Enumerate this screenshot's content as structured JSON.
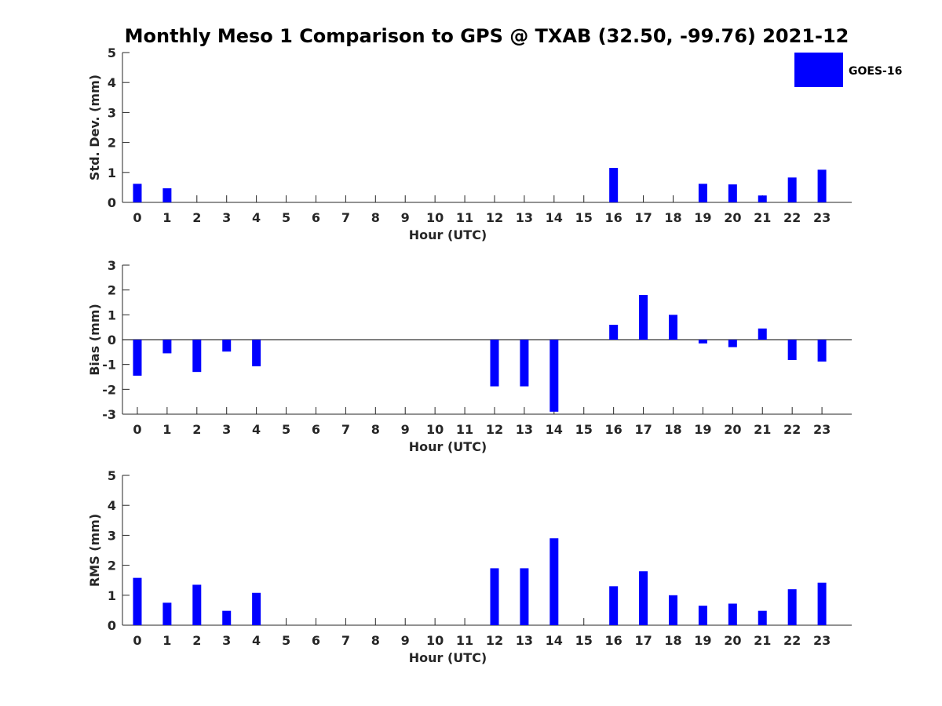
{
  "chart_data": {
    "type": "bar",
    "title": "Monthly Meso 1 Comparison to GPS @ TXAB (32.50, -99.76) 2021-12",
    "bar_color": "#0000ff",
    "legend": {
      "label": "GOES-16",
      "placement": "top-right"
    },
    "categories": [
      "0",
      "1",
      "2",
      "3",
      "4",
      "5",
      "6",
      "7",
      "8",
      "9",
      "10",
      "11",
      "12",
      "13",
      "14",
      "15",
      "16",
      "17",
      "18",
      "19",
      "20",
      "21",
      "22",
      "23"
    ],
    "panels": [
      {
        "name": "std-dev",
        "ylabel": "Std. Dev. (mm)",
        "xlabel": "Hour (UTC)",
        "ylim": [
          0,
          5
        ],
        "yticks": [
          0,
          1,
          2,
          3,
          4,
          5
        ],
        "values": [
          0.62,
          0.47,
          null,
          null,
          null,
          null,
          null,
          null,
          null,
          null,
          null,
          null,
          null,
          null,
          null,
          null,
          1.15,
          null,
          null,
          0.62,
          0.6,
          0.23,
          0.83,
          1.09
        ]
      },
      {
        "name": "bias",
        "ylabel": "Bias (mm)",
        "xlabel": "Hour (UTC)",
        "ylim": [
          -3,
          3
        ],
        "yticks": [
          -3,
          -2,
          -1,
          0,
          1,
          2,
          3
        ],
        "values": [
          -1.45,
          -0.55,
          -1.3,
          -0.48,
          -1.07,
          null,
          null,
          null,
          null,
          null,
          null,
          null,
          -1.88,
          -1.88,
          -2.9,
          null,
          0.6,
          1.8,
          1.0,
          -0.15,
          -0.3,
          0.45,
          -0.82,
          -0.88
        ]
      },
      {
        "name": "rms",
        "ylabel": "RMS (mm)",
        "xlabel": "Hour (UTC)",
        "ylim": [
          0,
          5
        ],
        "yticks": [
          0,
          1,
          2,
          3,
          4,
          5
        ],
        "values": [
          1.58,
          0.75,
          1.35,
          0.48,
          1.08,
          null,
          null,
          null,
          null,
          null,
          null,
          null,
          1.9,
          1.9,
          2.9,
          null,
          1.3,
          1.8,
          1.0,
          0.65,
          0.72,
          0.48,
          1.2,
          1.42
        ]
      }
    ]
  }
}
